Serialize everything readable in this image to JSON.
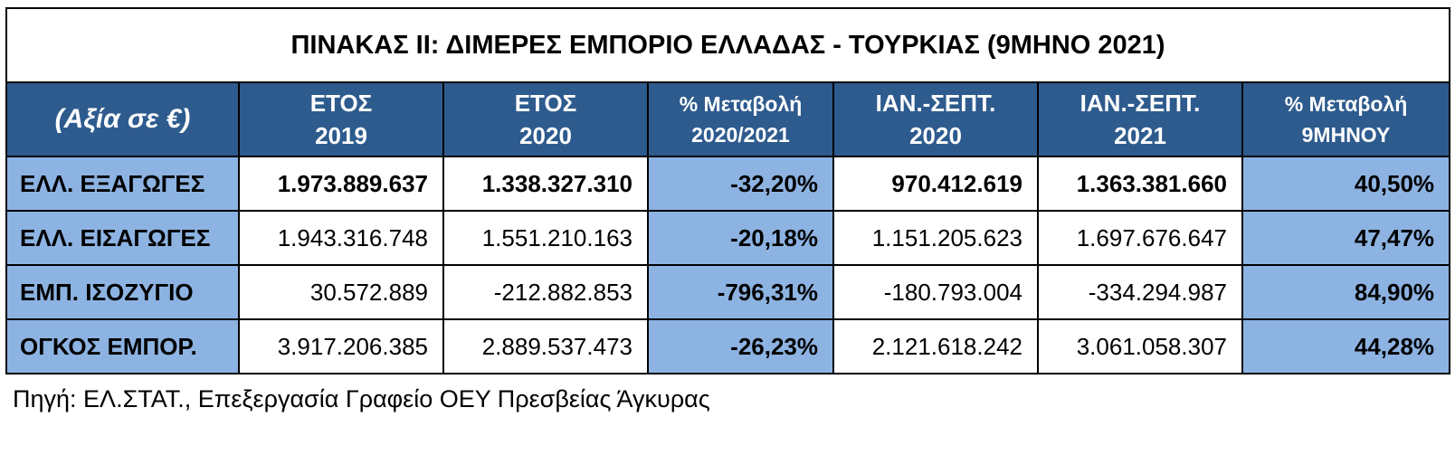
{
  "title": "ΠΙΝΑΚΑΣ ΙΙ: ΔΙΜΕΡΕΣ ΕΜΠΟΡΙΟ ΕΛΛΑΔΑΣ - ΤΟΥΡΚΙΑΣ (9ΜΗΝΟ 2021)",
  "header": {
    "label": "(Αξία σε €)",
    "columns": [
      {
        "line1": "ΕΤΟΣ",
        "line2": "2019"
      },
      {
        "line1": "ΕΤΟΣ",
        "line2": "2020"
      },
      {
        "line1": "% Μεταβολή",
        "line2": "2020/2021"
      },
      {
        "line1": "ΙΑΝ.-ΣΕΠΤ.",
        "line2": "2020"
      },
      {
        "line1": "ΙΑΝ.-ΣΕΠΤ.",
        "line2": "2021"
      },
      {
        "line1": "% Μεταβολή",
        "line2": "9ΜΗΝΟΥ"
      }
    ]
  },
  "rows": [
    {
      "label": "ΕΛΛ. ΕΞΑΓΩΓΕΣ",
      "y2019": "1.973.889.637",
      "y2020": "1.338.327.310",
      "pct_year": "-32,20%",
      "jan_sep_2020": "970.412.619",
      "jan_sep_2021": "1.363.381.660",
      "pct_9m": "40,50%"
    },
    {
      "label": "ΕΛΛ. ΕΙΣΑΓΩΓΕΣ",
      "y2019": "1.943.316.748",
      "y2020": "1.551.210.163",
      "pct_year": "-20,18%",
      "jan_sep_2020": "1.151.205.623",
      "jan_sep_2021": "1.697.676.647",
      "pct_9m": "47,47%"
    },
    {
      "label": "ΕΜΠ. ΙΣΟΖΥΓΙΟ",
      "y2019": "30.572.889",
      "y2020": "-212.882.853",
      "pct_year": "-796,31%",
      "jan_sep_2020": "-180.793.004",
      "jan_sep_2021": "-334.294.987",
      "pct_9m": "84,90%"
    },
    {
      "label": "ΟΓΚΟΣ ΕΜΠΟΡ.",
      "y2019": "3.917.206.385",
      "y2020": "2.889.537.473",
      "pct_year": "-26,23%",
      "jan_sep_2020": "2.121.618.242",
      "jan_sep_2021": "3.061.058.307",
      "pct_9m": "44,28%"
    }
  ],
  "source": "Πηγή: ΕΛ.ΣΤΑΤ., Επεξεργασία Γραφείο ΟΕΥ Πρεσβείας Άγκυρας",
  "colors": {
    "header_bg": "#2e5b8e",
    "highlight_bg": "#8db3e2"
  }
}
